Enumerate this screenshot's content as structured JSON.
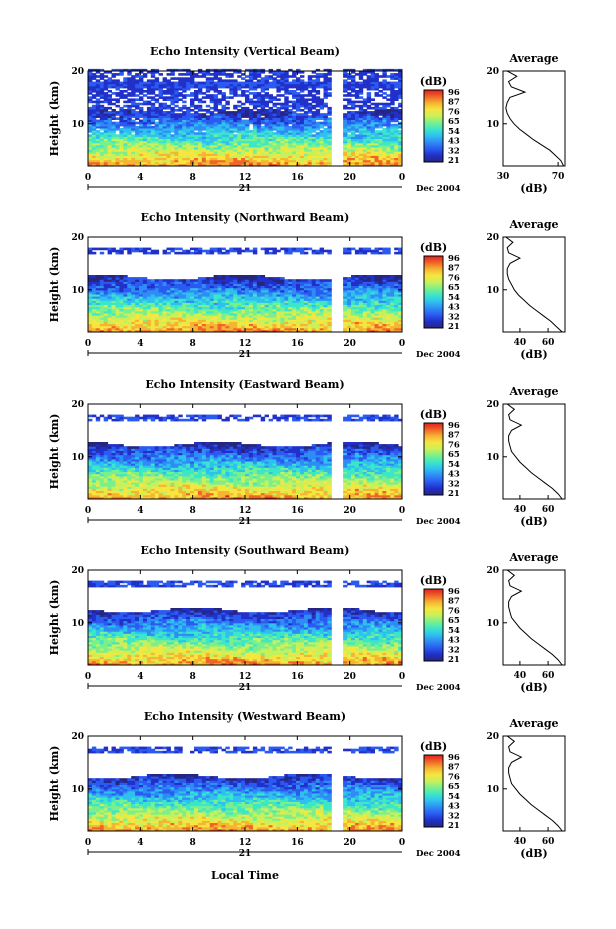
{
  "figure": {
    "footer_xlabel": "Local Time",
    "colors": {
      "colormap": [
        "#262680",
        "#2030c8",
        "#2a5af0",
        "#2e8cf5",
        "#30c0f0",
        "#3ce6c8",
        "#7af08c",
        "#c8f05a",
        "#f5e640",
        "#f5b432",
        "#f06428",
        "#e02020"
      ]
    }
  },
  "chart_data": [
    {
      "type": "heatmap",
      "title": "Echo Intensity (Vertical Beam)",
      "ylabel": "Height (km)",
      "yticks": [
        "20",
        "10"
      ],
      "ylim": [
        2,
        20
      ],
      "xticks": [
        "0",
        "4",
        "8",
        "12",
        "16",
        "20",
        "0"
      ],
      "xlim": [
        0,
        24
      ],
      "date_center": "21",
      "date_right": "Dec 2004",
      "data_gap_hours": [
        18.5,
        19.5
      ],
      "colorbar": {
        "unit": "(dB)",
        "ticks": [
          "96",
          "87",
          "76",
          "65",
          "54",
          "43",
          "32",
          "21"
        ]
      },
      "profile": {
        "title": "Average",
        "xlabel": "(dB)",
        "xticks": [
          "30",
          "70"
        ],
        "xlim": [
          30,
          75
        ],
        "height": [
          2,
          3,
          4,
          5,
          6,
          7,
          8,
          9,
          10,
          11,
          12,
          13,
          14,
          15,
          16,
          17,
          18,
          19,
          20
        ],
        "value": [
          74,
          72,
          68,
          64,
          58,
          52,
          47,
          42,
          38,
          35,
          33,
          32,
          33,
          35,
          46,
          36,
          34,
          40,
          33
        ]
      }
    },
    {
      "type": "heatmap",
      "title": "Echo Intensity (Northward Beam)",
      "ylabel": "Height (km)",
      "yticks": [
        "20",
        "10"
      ],
      "ylim": [
        2,
        20
      ],
      "xticks": [
        "0",
        "4",
        "8",
        "12",
        "16",
        "20",
        "0"
      ],
      "xlim": [
        0,
        24
      ],
      "date_center": "21",
      "date_right": "Dec 2004",
      "data_gap_hours": [
        18.5,
        19.5
      ],
      "colorbar": {
        "unit": "(dB)",
        "ticks": [
          "96",
          "87",
          "76",
          "65",
          "54",
          "43",
          "32",
          "21"
        ]
      },
      "profile": {
        "title": "Average",
        "xlabel": "(dB)",
        "xticks": [
          "40",
          "60"
        ],
        "xlim": [
          28,
          72
        ],
        "height": [
          2,
          3,
          4,
          5,
          6,
          7,
          8,
          9,
          10,
          11,
          12,
          13,
          14,
          15,
          16,
          17,
          18,
          19,
          20
        ],
        "value": [
          70,
          66,
          62,
          57,
          52,
          47,
          43,
          39,
          36,
          34,
          32,
          31,
          31,
          33,
          40,
          32,
          31,
          35,
          30
        ]
      }
    },
    {
      "type": "heatmap",
      "title": "Echo Intensity (Eastward Beam)",
      "ylabel": "Height (km)",
      "yticks": [
        "20",
        "10"
      ],
      "ylim": [
        2,
        20
      ],
      "xticks": [
        "0",
        "4",
        "8",
        "12",
        "16",
        "20",
        "0"
      ],
      "xlim": [
        0,
        24
      ],
      "date_center": "21",
      "date_right": "Dec 2004",
      "data_gap_hours": [
        18.5,
        19.5
      ],
      "colorbar": {
        "unit": "(dB)",
        "ticks": [
          "96",
          "87",
          "76",
          "65",
          "54",
          "43",
          "32",
          "21"
        ]
      },
      "profile": {
        "title": "Average",
        "xlabel": "(dB)",
        "xticks": [
          "40",
          "60"
        ],
        "xlim": [
          28,
          72
        ],
        "height": [
          2,
          3,
          4,
          5,
          6,
          7,
          8,
          9,
          10,
          11,
          12,
          13,
          14,
          15,
          16,
          17,
          18,
          19,
          20
        ],
        "value": [
          70,
          67,
          63,
          58,
          53,
          48,
          44,
          40,
          37,
          34,
          33,
          32,
          32,
          34,
          41,
          33,
          32,
          36,
          31
        ]
      }
    },
    {
      "type": "heatmap",
      "title": "Echo Intensity (Southward Beam)",
      "ylabel": "Height (km)",
      "yticks": [
        "20",
        "10"
      ],
      "ylim": [
        2,
        20
      ],
      "xticks": [
        "0",
        "4",
        "8",
        "12",
        "16",
        "20",
        "0"
      ],
      "xlim": [
        0,
        24
      ],
      "date_center": "21",
      "date_right": "Dec 2004",
      "data_gap_hours": [
        18.5,
        19.5
      ],
      "colorbar": {
        "unit": "(dB)",
        "ticks": [
          "96",
          "87",
          "76",
          "65",
          "54",
          "43",
          "32",
          "21"
        ]
      },
      "profile": {
        "title": "Average",
        "xlabel": "(dB)",
        "xticks": [
          "40",
          "60"
        ],
        "xlim": [
          28,
          72
        ],
        "height": [
          2,
          3,
          4,
          5,
          6,
          7,
          8,
          9,
          10,
          11,
          12,
          13,
          14,
          15,
          16,
          17,
          18,
          19,
          20
        ],
        "value": [
          70,
          67,
          63,
          58,
          53,
          48,
          44,
          40,
          37,
          34,
          33,
          32,
          32,
          34,
          41,
          33,
          32,
          36,
          31
        ]
      }
    },
    {
      "type": "heatmap",
      "title": "Echo Intensity (Westward Beam)",
      "ylabel": "Height (km)",
      "yticks": [
        "20",
        "10"
      ],
      "ylim": [
        2,
        20
      ],
      "xticks": [
        "0",
        "4",
        "8",
        "12",
        "16",
        "20",
        "0"
      ],
      "xlim": [
        0,
        24
      ],
      "date_center": "21",
      "date_right": "Dec 2004",
      "data_gap_hours": [
        18.5,
        19.5
      ],
      "colorbar": {
        "unit": "(dB)",
        "ticks": [
          "96",
          "87",
          "76",
          "65",
          "54",
          "43",
          "32",
          "21"
        ]
      },
      "profile": {
        "title": "Average",
        "xlabel": "(dB)",
        "xticks": [
          "40",
          "60"
        ],
        "xlim": [
          28,
          72
        ],
        "height": [
          2,
          3,
          4,
          5,
          6,
          7,
          8,
          9,
          10,
          11,
          12,
          13,
          14,
          15,
          16,
          17,
          18,
          19,
          20
        ],
        "value": [
          70,
          67,
          63,
          58,
          53,
          48,
          44,
          40,
          37,
          34,
          33,
          32,
          32,
          34,
          41,
          33,
          32,
          36,
          31
        ]
      }
    }
  ]
}
